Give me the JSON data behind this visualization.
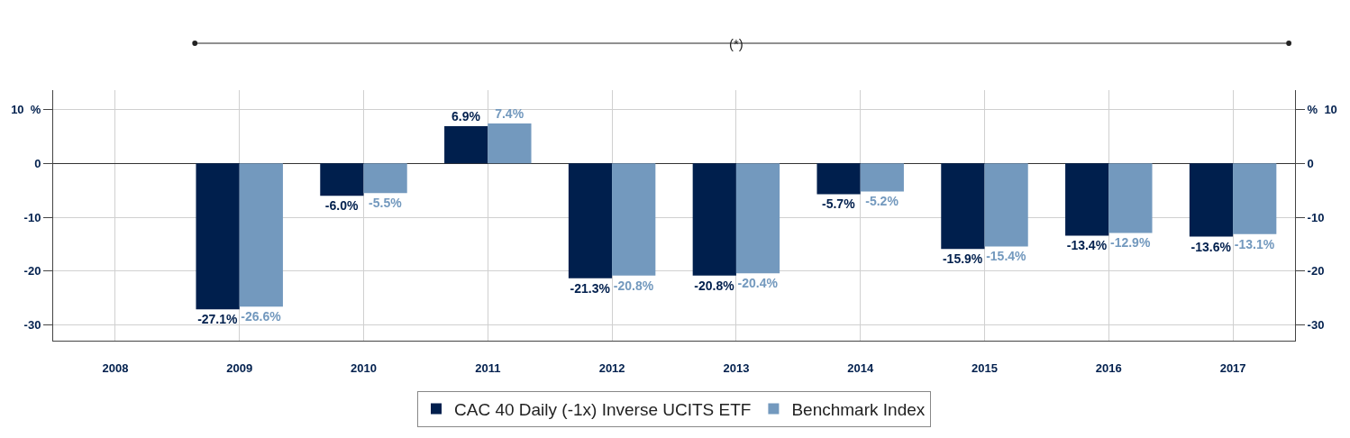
{
  "chart_data": {
    "type": "bar",
    "categories": [
      "2008",
      "2009",
      "2010",
      "2011",
      "2012",
      "2013",
      "2014",
      "2015",
      "2016",
      "2017"
    ],
    "series": [
      {
        "name": "CAC 40 Daily (-1x) Inverse UCITS ETF",
        "color": "#001f4d",
        "values": [
          null,
          -27.1,
          -6.0,
          6.9,
          -21.3,
          -20.8,
          -5.7,
          -15.9,
          -13.4,
          -13.6
        ],
        "value_labels": [
          null,
          "-27.1%",
          "-6.0%",
          "6.9%",
          "-21.3%",
          "-20.8%",
          "-5.7%",
          "-15.9%",
          "-13.4%",
          "-13.6%"
        ]
      },
      {
        "name": "Benchmark Index",
        "color": "#7399be",
        "values": [
          null,
          -26.6,
          -5.5,
          7.4,
          -20.8,
          -20.4,
          -5.2,
          -15.4,
          -12.9,
          -13.1
        ],
        "value_labels": [
          null,
          "-26.6%",
          "-5.5%",
          "7.4%",
          "-20.8%",
          "-20.4%",
          "-5.2%",
          "-15.4%",
          "-12.9%",
          "-13.1%"
        ]
      }
    ],
    "ylim": [
      -32.9,
      13.6
    ],
    "yticks": [
      -30,
      -20,
      -10,
      0,
      {
        "value": 10,
        "label": "10  %"
      }
    ],
    "y2lim": [
      -32.9,
      13.6
    ],
    "y2ticks": [
      -30,
      -20,
      -10,
      0,
      {
        "value": 10,
        "label": "%  10"
      }
    ],
    "grid": true,
    "legend": "bottom",
    "annotations": [
      "(*)"
    ]
  }
}
